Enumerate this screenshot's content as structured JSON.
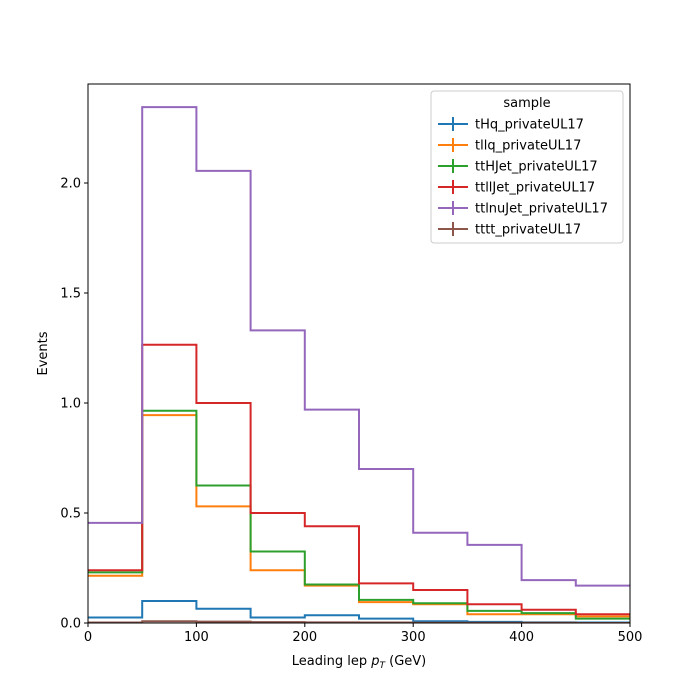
{
  "chart_data": {
    "type": "line",
    "drawstyle": "steps-mid",
    "xlabel": "Leading lep p_T (GeV)",
    "xlabel_parts": {
      "pre": "Leading lep ",
      "var": "p",
      "sub": "T",
      "post": " (GeV)"
    },
    "ylabel": "Events",
    "xlim": [
      0,
      500
    ],
    "ylim": [
      0,
      2.45
    ],
    "xticks": [
      0,
      100,
      200,
      300,
      400,
      500
    ],
    "yticks": [
      0.0,
      0.5,
      1.0,
      1.5,
      2.0
    ],
    "ytick_labels": [
      "0.0",
      "0.5",
      "1.0",
      "1.5",
      "2.0"
    ],
    "grid": false,
    "legend_placement": "top-right",
    "legend_title": "sample",
    "bin_edges": [
      0,
      50,
      100,
      150,
      200,
      250,
      300,
      350,
      400,
      450,
      500
    ],
    "series": [
      {
        "name": "tHq_privateUL17",
        "color": "#1f77b4",
        "values": [
          0.025,
          0.1,
          0.065,
          0.025,
          0.035,
          0.02,
          0.008,
          0.005,
          0.003,
          0.002
        ]
      },
      {
        "name": "tllq_privateUL17",
        "color": "#ff7f0e",
        "values": [
          0.215,
          0.945,
          0.53,
          0.24,
          0.17,
          0.095,
          0.085,
          0.04,
          0.04,
          0.03
        ]
      },
      {
        "name": "ttHJet_privateUL17",
        "color": "#2ca02c",
        "values": [
          0.23,
          0.965,
          0.625,
          0.325,
          0.175,
          0.105,
          0.09,
          0.055,
          0.045,
          0.02
        ]
      },
      {
        "name": "ttllJet_privateUL17",
        "color": "#d62728",
        "values": [
          0.24,
          1.265,
          1.0,
          0.5,
          0.44,
          0.18,
          0.15,
          0.085,
          0.06,
          0.04
        ]
      },
      {
        "name": "ttlnuJet_privateUL17",
        "color": "#9467bd",
        "values": [
          0.455,
          2.345,
          2.055,
          1.33,
          0.97,
          0.7,
          0.41,
          0.355,
          0.195,
          0.17
        ]
      },
      {
        "name": "tttt_privateUL17",
        "color": "#8c564b",
        "values": [
          0.002,
          0.008,
          0.006,
          0.004,
          0.003,
          0.002,
          0.001,
          0.001,
          0.001,
          0.0
        ]
      }
    ]
  }
}
